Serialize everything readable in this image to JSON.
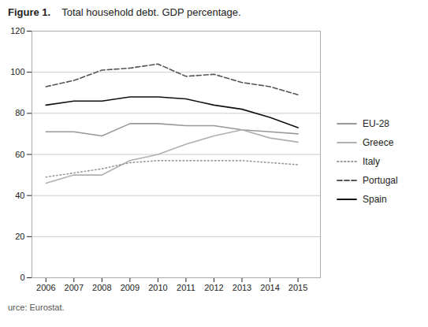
{
  "chart_data": {
    "type": "line",
    "title": "Figure 1.",
    "subtitle": "Total household debt. GDP percentage.",
    "source": "urce: Eurostat.",
    "x": [
      2006,
      2007,
      2008,
      2009,
      2010,
      2011,
      2012,
      2013,
      2014,
      2015
    ],
    "series": [
      {
        "name": "EU-28",
        "color": "#999999",
        "line_style": "solid",
        "values": [
          71,
          71,
          69,
          75,
          75,
          74,
          74,
          72,
          71,
          70
        ]
      },
      {
        "name": "Greece",
        "color": "#b0b0b0",
        "line_style": "solid",
        "values": [
          46,
          50,
          50,
          57,
          60,
          65,
          69,
          72,
          68,
          66
        ]
      },
      {
        "name": "Italy",
        "color": "#999999",
        "line_style": "dotted",
        "values": [
          49,
          51,
          53,
          56,
          57,
          57,
          57,
          57,
          56,
          55
        ]
      },
      {
        "name": "Portugal",
        "color": "#555555",
        "line_style": "dashed",
        "values": [
          93,
          96,
          101,
          102,
          104,
          98,
          99,
          95,
          93,
          89
        ]
      },
      {
        "name": "Spain",
        "color": "#111111",
        "line_style": "solid",
        "values": [
          84,
          86,
          86,
          88,
          88,
          87,
          84,
          82,
          78,
          73
        ]
      }
    ],
    "xlim": [
      2005.5,
      2015.8
    ],
    "xticks": [
      2006,
      2007,
      2008,
      2009,
      2010,
      2011,
      2012,
      2013,
      2014,
      2015
    ],
    "ylim": [
      0,
      120
    ],
    "yticks": [
      0,
      20,
      40,
      60,
      80,
      100,
      120
    ],
    "grid": "y",
    "legend": "right"
  }
}
